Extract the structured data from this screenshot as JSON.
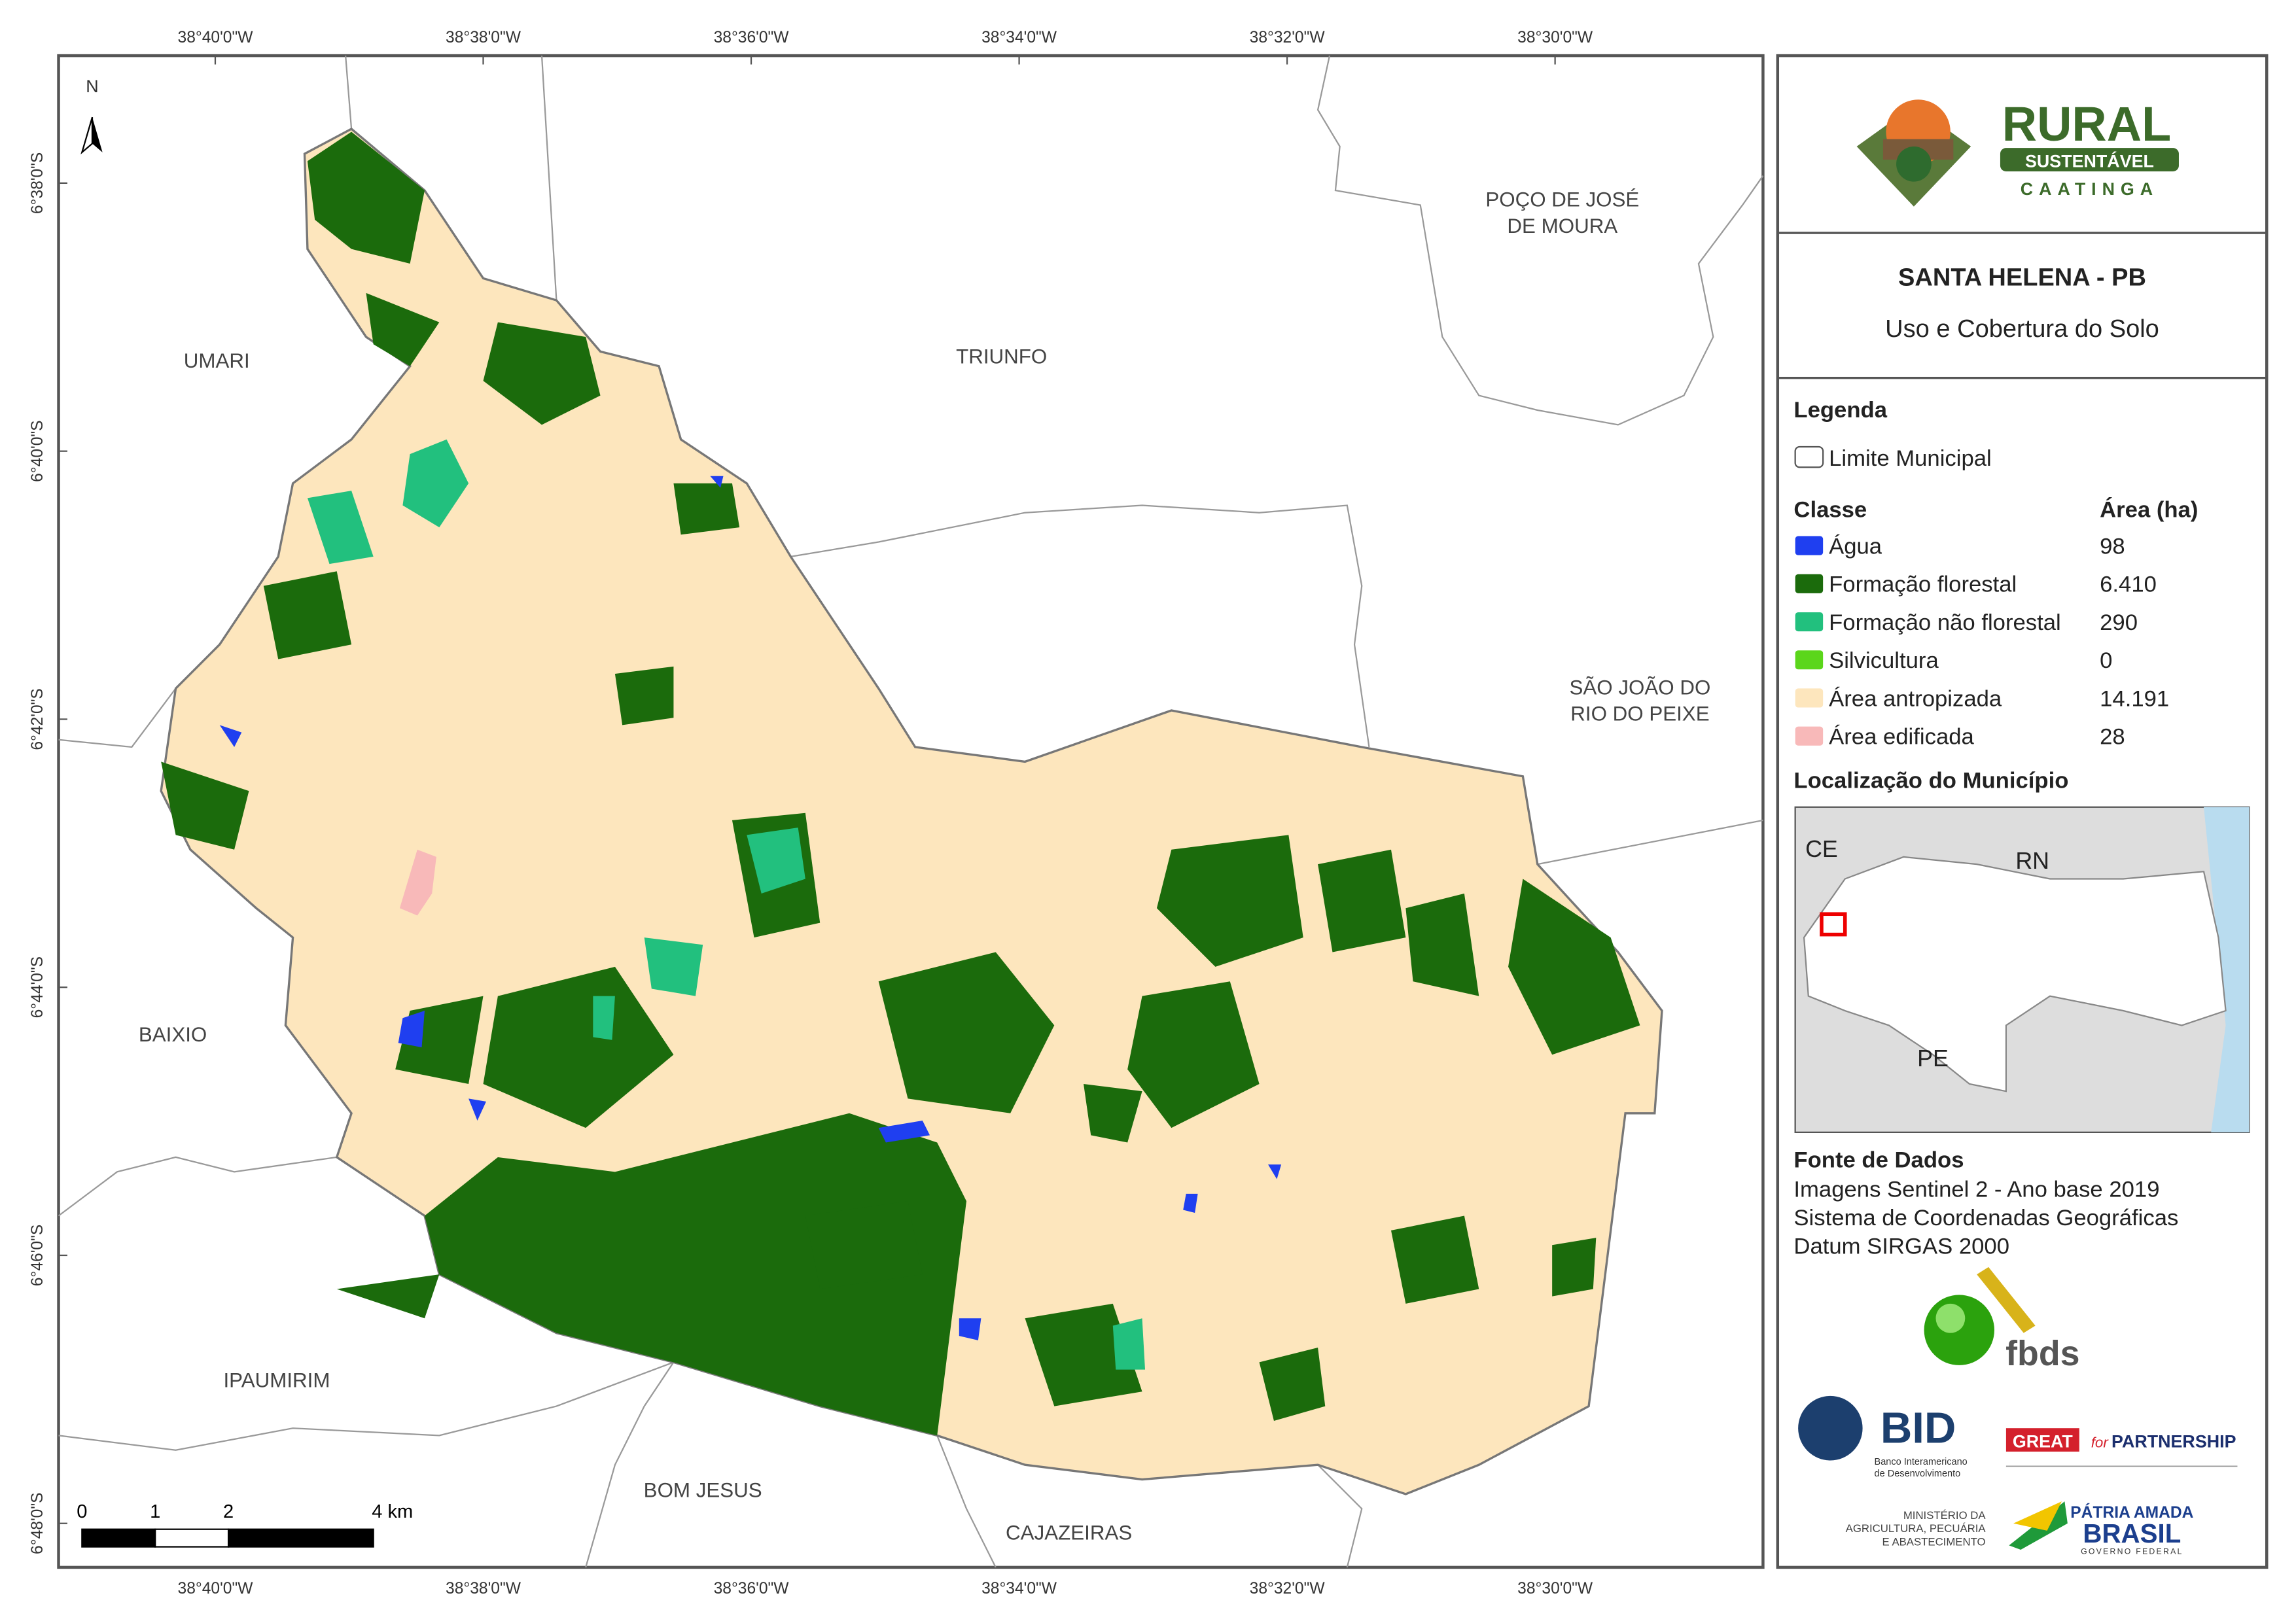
{
  "map": {
    "north": "N",
    "longitudes": [
      "38°40'0\"W",
      "38°38'0\"W",
      "38°36'0\"W",
      "38°34'0\"W",
      "38°32'0\"W",
      "38°30'0\"W"
    ],
    "latitudes": [
      "6°38'0\"S",
      "6°40'0\"S",
      "6°42'0\"S",
      "6°44'0\"S",
      "6°46'0\"S",
      "6°48'0\"S"
    ],
    "places": [
      [
        "UMARI"
      ],
      [
        "TRIUNFO"
      ],
      [
        "POÇO DE JOSÉ",
        "DE MOURA"
      ],
      [
        "SÃO JOÃO DO",
        "RIO DO PEIXE"
      ],
      [
        "BAIXIO"
      ],
      [
        "IPAUMIRIM"
      ],
      [
        "BOM JESUS"
      ],
      [
        "CAJAZEIRAS"
      ]
    ],
    "scale_bar": [
      "0",
      "1",
      "2",
      "4 km"
    ]
  },
  "panel": {
    "logo": {
      "name": "RURAL",
      "band": "SUSTENTÁVEL",
      "region": "CAATINGA"
    },
    "title": "SANTA HELENA - PB",
    "subtitle": "Uso e Cobertura do Solo",
    "legend": {
      "heading": "Legenda",
      "boundary": "Limite Municipal",
      "class_header": "Classe",
      "area_header": "Área (ha)",
      "classes": [
        {
          "name": "Água",
          "area": "98",
          "color": "#1f3ff0"
        },
        {
          "name": "Formação florestal",
          "area": "6.410",
          "color": "#1b6b0c"
        },
        {
          "name": "Formação não florestal",
          "area": "290",
          "color": "#22c07e"
        },
        {
          "name": "Silvicultura",
          "area": "0",
          "color": "#5bd61b"
        },
        {
          "name": "Área antropizada",
          "area": "14.191",
          "color": "#fde6bd"
        },
        {
          "name": "Área edificada",
          "area": "28",
          "color": "#f8b9b9"
        }
      ]
    },
    "location": {
      "heading": "Localização do Município",
      "labels": [
        "CE",
        "RN",
        "PE"
      ]
    },
    "sources": {
      "heading": "Fonte de Dados",
      "lines": [
        "Imagens Sentinel 2 - Ano base 2019",
        "Sistema de Coordenadas Geográficas",
        "Datum SIRGAS 2000"
      ]
    },
    "partners": {
      "fbds": "fbds",
      "bid": "BID",
      "bid_lines": [
        "Banco Interamericano",
        "de Desenvolvimento"
      ],
      "great": "GREAT",
      "for": "for",
      "partnership": "PARTNERSHIP",
      "ministry": [
        "MINISTÉRIO DA",
        "AGRICULTURA, PECUÁRIA",
        "E ABASTECIMENTO"
      ],
      "brasil_top": "PÁTRIA AMADA",
      "brasil": "BRASIL",
      "brasil_sub": "GOVERNO FEDERAL"
    }
  }
}
